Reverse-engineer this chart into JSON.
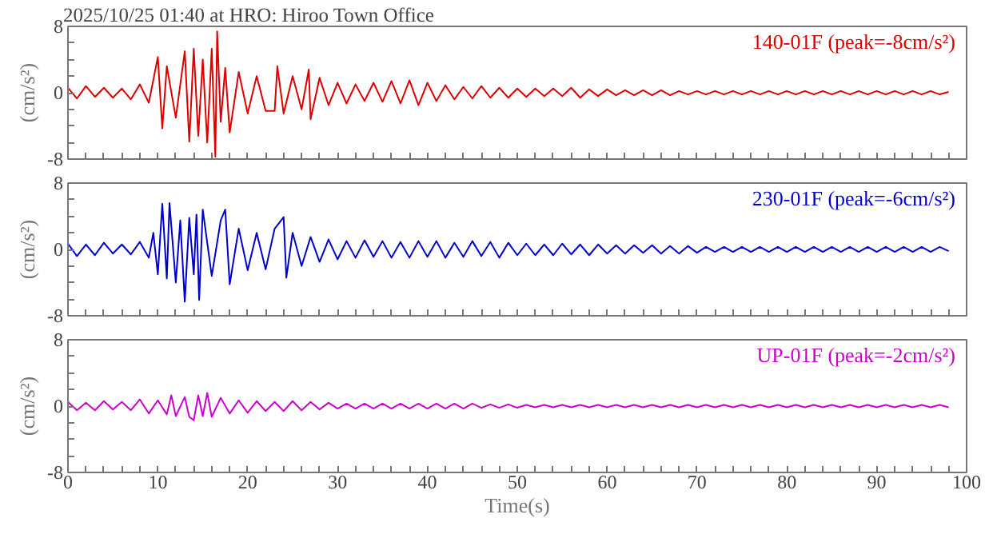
{
  "chart_data": [
    {
      "type": "line",
      "title": "2025/10/25 01:40 at HRO: Hiroo Town Office",
      "ylabel": "(cm/s²)",
      "xlim": [
        0,
        100
      ],
      "ylim": [
        -8,
        8
      ],
      "yticks": [
        -8,
        {
          "value": -6,
          "label": null
        },
        {
          "value": -4,
          "label": null
        },
        {
          "value": -2,
          "label": null
        },
        0,
        {
          "value": 2,
          "label": null
        },
        {
          "value": 4,
          "label": null
        },
        {
          "value": 6,
          "label": null
        },
        8
      ],
      "xticks": [
        0,
        {
          "value": 2,
          "label": null
        },
        {
          "value": 4,
          "label": null
        },
        {
          "value": 6,
          "label": null
        },
        {
          "value": 8,
          "label": null
        },
        10,
        {
          "value": 12,
          "label": null
        },
        {
          "value": 14,
          "label": null
        },
        {
          "value": 16,
          "label": null
        },
        {
          "value": 18,
          "label": null
        },
        20,
        {
          "value": 22,
          "label": null
        },
        {
          "value": 24,
          "label": null
        },
        {
          "value": 26,
          "label": null
        },
        {
          "value": 28,
          "label": null
        },
        30,
        {
          "value": 32,
          "label": null
        },
        {
          "value": 34,
          "label": null
        },
        {
          "value": 36,
          "label": null
        },
        {
          "value": 38,
          "label": null
        },
        40,
        {
          "value": 42,
          "label": null
        },
        {
          "value": 44,
          "label": null
        },
        {
          "value": 46,
          "label": null
        },
        {
          "value": 48,
          "label": null
        },
        50,
        {
          "value": 52,
          "label": null
        },
        {
          "value": 54,
          "label": null
        },
        {
          "value": 56,
          "label": null
        },
        {
          "value": 58,
          "label": null
        },
        60,
        {
          "value": 62,
          "label": null
        },
        {
          "value": 64,
          "label": null
        },
        {
          "value": 66,
          "label": null
        },
        {
          "value": 68,
          "label": null
        },
        70,
        {
          "value": 72,
          "label": null
        },
        {
          "value": 74,
          "label": null
        },
        {
          "value": 76,
          "label": null
        },
        {
          "value": 78,
          "label": null
        },
        80,
        {
          "value": 82,
          "label": null
        },
        {
          "value": 84,
          "label": null
        },
        {
          "value": 86,
          "label": null
        },
        {
          "value": 88,
          "label": null
        },
        90,
        {
          "value": 92,
          "label": null
        },
        {
          "value": 94,
          "label": null
        },
        {
          "value": 96,
          "label": null
        },
        {
          "value": 98,
          "label": null
        },
        100
      ],
      "tick_labels": "y",
      "series": [
        {
          "name": "140-01F (peak=-8cm/s²)",
          "color": "#dd0000",
          "x": [
            0,
            1,
            2,
            3,
            4,
            5,
            6,
            7,
            8,
            9,
            10,
            10.5,
            11,
            12,
            13,
            13.5,
            14,
            14.5,
            15,
            15.5,
            16,
            16.4,
            16.6,
            17,
            17.5,
            18,
            19,
            20,
            21,
            22,
            23,
            23.3,
            24,
            25,
            26,
            26.8,
            27,
            28,
            29,
            30,
            31,
            32,
            33,
            34,
            35,
            36,
            37,
            38,
            39,
            40,
            41,
            42,
            43,
            44,
            45,
            46,
            47,
            48,
            49,
            50,
            51,
            52,
            53,
            54,
            55,
            56,
            57,
            58,
            59,
            60,
            61,
            62,
            63,
            64,
            65,
            66,
            67,
            68,
            69,
            70,
            71,
            72,
            73,
            74,
            75,
            76,
            77,
            78,
            79,
            80,
            81,
            82,
            83,
            84,
            85,
            86,
            87,
            88,
            89,
            90,
            91,
            92,
            93,
            94,
            95,
            96,
            97,
            98
          ],
          "values": [
            0.6,
            -0.7,
            0.8,
            -0.5,
            0.6,
            -0.6,
            0.5,
            -0.8,
            1.0,
            -1.2,
            4.3,
            -4.3,
            3.2,
            -3.0,
            5.0,
            -5.9,
            5.3,
            -5.2,
            4.0,
            -6.0,
            5.3,
            -7.7,
            7.4,
            -3.5,
            3.0,
            -4.8,
            2.5,
            -2.5,
            2.0,
            -2.2,
            -2.2,
            3.2,
            -2.5,
            2.0,
            -2.0,
            2.8,
            -3.2,
            1.8,
            -1.5,
            1.2,
            -1.3,
            1.0,
            -1.0,
            1.2,
            -1.1,
            1.4,
            -1.3,
            1.5,
            -1.5,
            1.2,
            -1.0,
            0.9,
            -0.8,
            0.7,
            -0.7,
            0.8,
            -0.6,
            0.6,
            -0.6,
            0.5,
            -0.5,
            0.5,
            -0.4,
            0.5,
            -0.4,
            0.6,
            -0.6,
            0.4,
            -0.4,
            0.4,
            -0.3,
            0.3,
            -0.3,
            0.3,
            -0.3,
            0.3,
            -0.3,
            0.2,
            -0.2,
            0.2,
            -0.2,
            0.2,
            -0.2,
            0.2,
            -0.2,
            0.2,
            -0.2,
            0.2,
            -0.2,
            0.2,
            -0.2,
            0.2,
            -0.2,
            0.2,
            -0.2,
            0.2,
            -0.2,
            0.2,
            -0.2,
            0.2,
            -0.2,
            0.2,
            -0.2,
            0.2,
            -0.2,
            0.2,
            -0.2,
            0.1
          ]
        }
      ]
    },
    {
      "type": "line",
      "ylabel": "(cm/s²)",
      "xlim": [
        0,
        100
      ],
      "ylim": [
        -8,
        8
      ],
      "yticks": [
        -8,
        {
          "value": -6,
          "label": null
        },
        {
          "value": -4,
          "label": null
        },
        {
          "value": -2,
          "label": null
        },
        0,
        {
          "value": 2,
          "label": null
        },
        {
          "value": 4,
          "label": null
        },
        {
          "value": 6,
          "label": null
        },
        8
      ],
      "xticks": [
        0,
        {
          "value": 2,
          "label": null
        },
        {
          "value": 4,
          "label": null
        },
        {
          "value": 6,
          "label": null
        },
        {
          "value": 8,
          "label": null
        },
        10,
        {
          "value": 12,
          "label": null
        },
        {
          "value": 14,
          "label": null
        },
        {
          "value": 16,
          "label": null
        },
        {
          "value": 18,
          "label": null
        },
        20,
        {
          "value": 22,
          "label": null
        },
        {
          "value": 24,
          "label": null
        },
        {
          "value": 26,
          "label": null
        },
        {
          "value": 28,
          "label": null
        },
        30,
        {
          "value": 32,
          "label": null
        },
        {
          "value": 34,
          "label": null
        },
        {
          "value": 36,
          "label": null
        },
        {
          "value": 38,
          "label": null
        },
        40,
        {
          "value": 42,
          "label": null
        },
        {
          "value": 44,
          "label": null
        },
        {
          "value": 46,
          "label": null
        },
        {
          "value": 48,
          "label": null
        },
        50,
        {
          "value": 52,
          "label": null
        },
        {
          "value": 54,
          "label": null
        },
        {
          "value": 56,
          "label": null
        },
        {
          "value": 58,
          "label": null
        },
        60,
        {
          "value": 62,
          "label": null
        },
        {
          "value": 64,
          "label": null
        },
        {
          "value": 66,
          "label": null
        },
        {
          "value": 68,
          "label": null
        },
        70,
        {
          "value": 72,
          "label": null
        },
        {
          "value": 74,
          "label": null
        },
        {
          "value": 76,
          "label": null
        },
        {
          "value": 78,
          "label": null
        },
        80,
        {
          "value": 82,
          "label": null
        },
        {
          "value": 84,
          "label": null
        },
        {
          "value": 86,
          "label": null
        },
        {
          "value": 88,
          "label": null
        },
        90,
        {
          "value": 92,
          "label": null
        },
        {
          "value": 94,
          "label": null
        },
        {
          "value": 96,
          "label": null
        },
        {
          "value": 98,
          "label": null
        },
        100
      ],
      "tick_labels": "y",
      "series": [
        {
          "name": "230-01F (peak=-6cm/s²)",
          "color": "#0000cc",
          "x": [
            0,
            1,
            2,
            3,
            4,
            5,
            6,
            7,
            8,
            9,
            9.5,
            10,
            10.5,
            11,
            11.3,
            12,
            12.5,
            13,
            13.5,
            14,
            14.3,
            14.6,
            15,
            16,
            17,
            17.5,
            18,
            19,
            20,
            21,
            22,
            23,
            24,
            24.3,
            25,
            26,
            27,
            28,
            29,
            30,
            31,
            32,
            33,
            34,
            35,
            36,
            37,
            38,
            39,
            40,
            41,
            42,
            43,
            44,
            45,
            46,
            47,
            48,
            49,
            50,
            51,
            52,
            53,
            54,
            55,
            56,
            57,
            58,
            59,
            60,
            61,
            62,
            63,
            64,
            65,
            66,
            67,
            68,
            69,
            70,
            71,
            72,
            73,
            74,
            75,
            76,
            77,
            78,
            79,
            80,
            81,
            82,
            83,
            84,
            85,
            86,
            87,
            88,
            89,
            90,
            91,
            92,
            93,
            94,
            95,
            96,
            97,
            98
          ],
          "values": [
            0.7,
            -0.8,
            0.6,
            -0.7,
            0.8,
            -0.5,
            0.6,
            -0.6,
            0.9,
            -1.0,
            2.0,
            -3.0,
            5.5,
            -3.5,
            5.6,
            -4.0,
            3.5,
            -6.3,
            3.8,
            -3.0,
            4.2,
            -6.1,
            4.8,
            -3.2,
            3.5,
            4.8,
            -4.2,
            2.5,
            -2.5,
            2.0,
            -2.4,
            2.5,
            3.9,
            -3.4,
            2.0,
            -2.0,
            1.5,
            -1.5,
            1.2,
            -1.2,
            1.0,
            -1.0,
            1.1,
            -0.9,
            1.0,
            -1.0,
            0.9,
            -1.0,
            1.0,
            -0.9,
            1.0,
            -1.0,
            0.8,
            -0.9,
            1.0,
            -0.8,
            0.9,
            -1.0,
            0.8,
            -0.7,
            0.7,
            -0.7,
            0.6,
            -0.7,
            0.7,
            -0.6,
            0.6,
            -0.7,
            0.6,
            -0.5,
            0.5,
            -0.5,
            0.5,
            -0.4,
            0.5,
            -0.5,
            0.4,
            -0.5,
            0.4,
            -0.4,
            0.3,
            -0.3,
            0.3,
            -0.3,
            0.3,
            -0.3,
            0.3,
            -0.3,
            0.3,
            -0.3,
            0.3,
            -0.3,
            0.3,
            -0.3,
            0.3,
            -0.3,
            0.3,
            -0.3,
            0.3,
            -0.3,
            0.3,
            -0.3,
            0.3,
            -0.3,
            0.3,
            -0.3,
            0.3,
            -0.2
          ]
        }
      ]
    },
    {
      "type": "line",
      "ylabel": "(cm/s²)",
      "xlabel": "Time(s)",
      "xlim": [
        0,
        100
      ],
      "ylim": [
        -8,
        8
      ],
      "yticks": [
        -8,
        {
          "value": -6,
          "label": null
        },
        {
          "value": -4,
          "label": null
        },
        {
          "value": -2,
          "label": null
        },
        0,
        {
          "value": 2,
          "label": null
        },
        {
          "value": 4,
          "label": null
        },
        {
          "value": 6,
          "label": null
        },
        8
      ],
      "xticks": [
        0,
        {
          "value": 2,
          "label": null
        },
        {
          "value": 4,
          "label": null
        },
        {
          "value": 6,
          "label": null
        },
        {
          "value": 8,
          "label": null
        },
        10,
        {
          "value": 12,
          "label": null
        },
        {
          "value": 14,
          "label": null
        },
        {
          "value": 16,
          "label": null
        },
        {
          "value": 18,
          "label": null
        },
        20,
        {
          "value": 22,
          "label": null
        },
        {
          "value": 24,
          "label": null
        },
        {
          "value": 26,
          "label": null
        },
        {
          "value": 28,
          "label": null
        },
        30,
        {
          "value": 32,
          "label": null
        },
        {
          "value": 34,
          "label": null
        },
        {
          "value": 36,
          "label": null
        },
        {
          "value": 38,
          "label": null
        },
        40,
        {
          "value": 42,
          "label": null
        },
        {
          "value": 44,
          "label": null
        },
        {
          "value": 46,
          "label": null
        },
        {
          "value": 48,
          "label": null
        },
        50,
        {
          "value": 52,
          "label": null
        },
        {
          "value": 54,
          "label": null
        },
        {
          "value": 56,
          "label": null
        },
        {
          "value": 58,
          "label": null
        },
        60,
        {
          "value": 62,
          "label": null
        },
        {
          "value": 64,
          "label": null
        },
        {
          "value": 66,
          "label": null
        },
        {
          "value": 68,
          "label": null
        },
        70,
        {
          "value": 72,
          "label": null
        },
        {
          "value": 74,
          "label": null
        },
        {
          "value": 76,
          "label": null
        },
        {
          "value": 78,
          "label": null
        },
        80,
        {
          "value": 82,
          "label": null
        },
        {
          "value": 84,
          "label": null
        },
        {
          "value": 86,
          "label": null
        },
        {
          "value": 88,
          "label": null
        },
        90,
        {
          "value": 92,
          "label": null
        },
        {
          "value": 94,
          "label": null
        },
        {
          "value": 96,
          "label": null
        },
        {
          "value": 98,
          "label": null
        },
        100
      ],
      "series": [
        {
          "name": "UP-01F (peak=-2cm/s²)",
          "color": "#cc00cc",
          "x": [
            0,
            1,
            2,
            3,
            4,
            5,
            6,
            7,
            8,
            9,
            10,
            11,
            11.5,
            12,
            13,
            13.5,
            14,
            14.5,
            15,
            15.5,
            16,
            17,
            18,
            19,
            20,
            21,
            22,
            23,
            24,
            25,
            26,
            27,
            28,
            29,
            30,
            31,
            32,
            33,
            34,
            35,
            36,
            37,
            38,
            39,
            40,
            41,
            42,
            43,
            44,
            45,
            46,
            47,
            48,
            49,
            50,
            51,
            52,
            53,
            54,
            55,
            56,
            57,
            58,
            59,
            60,
            61,
            62,
            63,
            64,
            65,
            66,
            67,
            68,
            69,
            70,
            71,
            72,
            73,
            74,
            75,
            76,
            77,
            78,
            79,
            80,
            81,
            82,
            83,
            84,
            85,
            86,
            87,
            88,
            89,
            90,
            91,
            92,
            93,
            94,
            95,
            96,
            97,
            98
          ],
          "values": [
            0.5,
            -0.5,
            0.4,
            -0.5,
            0.6,
            -0.4,
            0.5,
            -0.5,
            0.8,
            -0.9,
            0.7,
            -1.0,
            1.3,
            -1.2,
            1.1,
            -1.3,
            -1.7,
            1.3,
            -1.2,
            1.6,
            -1.3,
            1.0,
            -0.9,
            0.7,
            -0.8,
            0.6,
            -0.6,
            0.5,
            -0.6,
            0.6,
            -0.5,
            0.5,
            -0.4,
            0.4,
            -0.3,
            0.3,
            -0.3,
            0.3,
            -0.3,
            0.3,
            -0.3,
            0.3,
            -0.3,
            0.3,
            -0.3,
            0.3,
            -0.3,
            0.3,
            -0.3,
            0.3,
            -0.2,
            0.2,
            -0.2,
            0.2,
            -0.2,
            0.15,
            -0.15,
            0.15,
            -0.15,
            0.15,
            -0.15,
            0.15,
            -0.15,
            0.15,
            -0.15,
            0.15,
            -0.15,
            0.15,
            -0.15,
            0.15,
            -0.15,
            0.15,
            -0.15,
            0.15,
            -0.15,
            0.15,
            -0.15,
            0.15,
            -0.15,
            0.15,
            -0.15,
            0.15,
            -0.15,
            0.15,
            -0.15,
            0.15,
            -0.15,
            0.15,
            -0.15,
            0.15,
            -0.15,
            0.15,
            -0.15,
            0.15,
            -0.15,
            0.15,
            -0.15,
            0.15,
            -0.15,
            0.15,
            -0.15,
            0.15,
            -0.15
          ]
        }
      ]
    }
  ]
}
